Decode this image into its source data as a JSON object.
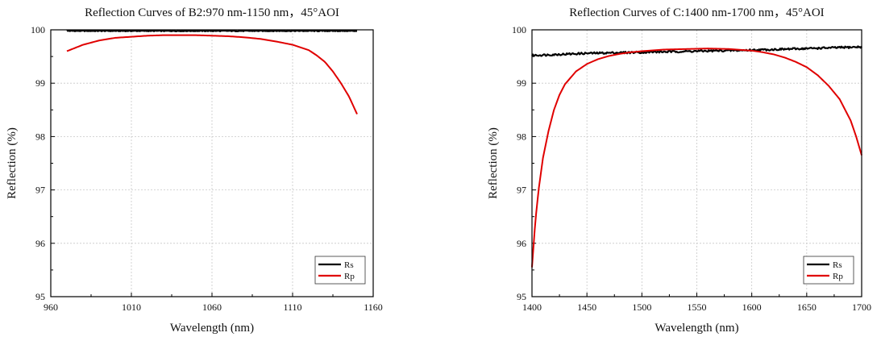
{
  "chart_data": [
    {
      "type": "line",
      "title": "Reflection Curves of B2:970 nm-1150 nm，45°AOI",
      "xlabel": "Wavelength (nm)",
      "ylabel": "Reflection (%)",
      "xlim": [
        960,
        1160
      ],
      "ylim": [
        95,
        100
      ],
      "xticks": [
        960,
        1010,
        1060,
        1110,
        1160
      ],
      "yticks": [
        95,
        96,
        97,
        98,
        99,
        100
      ],
      "grid": true,
      "legend_position": "bottom-right",
      "series": [
        {
          "name": "Rs",
          "color": "#000000",
          "x": [
            970,
            1000,
            1030,
            1060,
            1090,
            1120,
            1150
          ],
          "y": [
            99.98,
            99.98,
            99.98,
            99.98,
            99.98,
            99.98,
            99.98
          ]
        },
        {
          "name": "Rp",
          "color": "#e00000",
          "x": [
            970,
            980,
            990,
            1000,
            1010,
            1020,
            1030,
            1040,
            1050,
            1060,
            1070,
            1080,
            1090,
            1100,
            1110,
            1120,
            1125,
            1130,
            1135,
            1140,
            1145,
            1150
          ],
          "y": [
            99.6,
            99.72,
            99.8,
            99.85,
            99.87,
            99.89,
            99.9,
            99.9,
            99.9,
            99.89,
            99.88,
            99.86,
            99.83,
            99.78,
            99.72,
            99.62,
            99.52,
            99.4,
            99.22,
            99.0,
            98.75,
            98.42
          ]
        }
      ]
    },
    {
      "type": "line",
      "title": "Reflection Curves of C:1400 nm-1700 nm，45°AOI",
      "xlabel": "Wavelength (nm)",
      "ylabel": "Reflection (%)",
      "xlim": [
        1400,
        1700
      ],
      "ylim": [
        95,
        100
      ],
      "xticks": [
        1400,
        1450,
        1500,
        1550,
        1600,
        1650,
        1700
      ],
      "yticks": [
        95,
        96,
        97,
        98,
        99,
        100
      ],
      "grid": true,
      "legend_position": "bottom-right",
      "series": [
        {
          "name": "Rs",
          "color": "#000000",
          "x": [
            1400,
            1450,
            1500,
            1550,
            1600,
            1650,
            1700
          ],
          "y": [
            99.52,
            99.56,
            99.58,
            99.6,
            99.62,
            99.65,
            99.68
          ]
        },
        {
          "name": "Rp",
          "color": "#e00000",
          "x": [
            1400,
            1403,
            1406,
            1410,
            1415,
            1420,
            1425,
            1430,
            1440,
            1450,
            1460,
            1470,
            1480,
            1490,
            1500,
            1520,
            1540,
            1560,
            1580,
            1600,
            1610,
            1620,
            1630,
            1640,
            1650,
            1660,
            1670,
            1680,
            1690,
            1695,
            1700
          ],
          "y": [
            95.55,
            96.4,
            97.0,
            97.6,
            98.1,
            98.5,
            98.78,
            98.98,
            99.22,
            99.36,
            99.45,
            99.51,
            99.55,
            99.58,
            99.6,
            99.63,
            99.64,
            99.65,
            99.64,
            99.61,
            99.58,
            99.54,
            99.48,
            99.4,
            99.3,
            99.15,
            98.95,
            98.7,
            98.3,
            98.0,
            97.65
          ]
        }
      ]
    }
  ]
}
